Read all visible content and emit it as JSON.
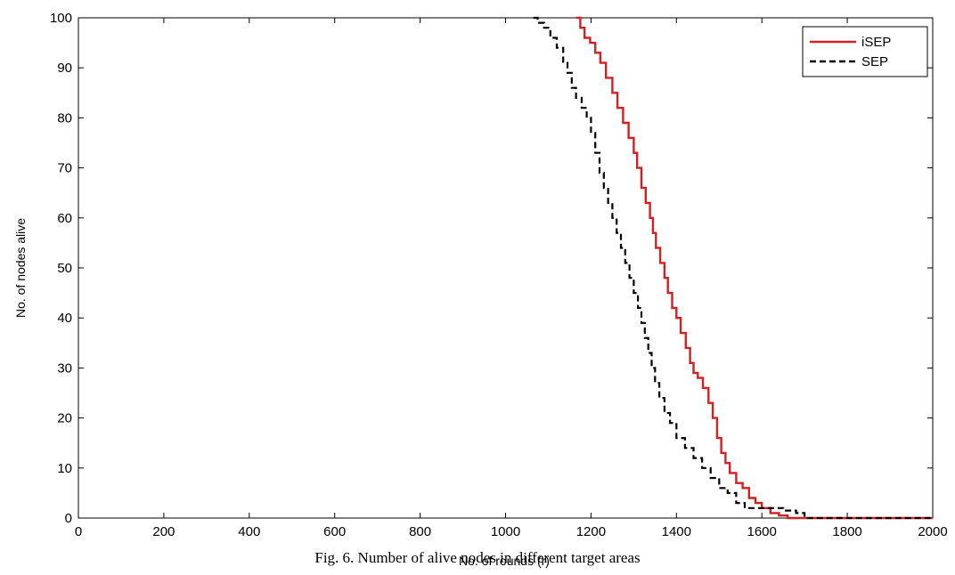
{
  "caption": "Fig. 6. Number of alive nodes in different target areas",
  "chart_data": {
    "type": "line",
    "xlabel": "No. of rounds (r)",
    "ylabel": "No. of nodes alive",
    "xlim": [
      0,
      2000
    ],
    "ylim": [
      0,
      100
    ],
    "x_ticks": [
      0,
      200,
      400,
      600,
      800,
      1000,
      1200,
      1400,
      1600,
      1800,
      2000
    ],
    "y_ticks": [
      0,
      10,
      20,
      30,
      40,
      50,
      60,
      70,
      80,
      90,
      100
    ],
    "grid": false,
    "legend_position": "top-right",
    "series": [
      {
        "name": "iSEP",
        "color": "#d42020",
        "line_style": "solid",
        "x": [
          1165,
          1175,
          1185,
          1198,
          1210,
          1222,
          1235,
          1250,
          1262,
          1275,
          1288,
          1300,
          1308,
          1318,
          1328,
          1338,
          1345,
          1352,
          1362,
          1372,
          1380,
          1390,
          1400,
          1410,
          1422,
          1432,
          1440,
          1450,
          1462,
          1475,
          1485,
          1495,
          1505,
          1515,
          1525,
          1540,
          1555,
          1570,
          1585,
          1600,
          1620,
          1640,
          1660,
          1700,
          2000
        ],
        "y": [
          100,
          98,
          96,
          95,
          93,
          91,
          88,
          85,
          82,
          79,
          76,
          73,
          70,
          66,
          63,
          60,
          57,
          54,
          51,
          48,
          45,
          42,
          40,
          37,
          34,
          31,
          29,
          28,
          26,
          23,
          20,
          16,
          13,
          11,
          9,
          7,
          6,
          4,
          3,
          2,
          1,
          0.5,
          0,
          0,
          0
        ]
      },
      {
        "name": "SEP",
        "color": "#000000",
        "line_style": "dashed",
        "x": [
          1065,
          1075,
          1090,
          1105,
          1120,
          1135,
          1145,
          1155,
          1165,
          1178,
          1190,
          1200,
          1210,
          1220,
          1230,
          1240,
          1250,
          1260,
          1270,
          1280,
          1290,
          1300,
          1310,
          1318,
          1326,
          1334,
          1342,
          1350,
          1360,
          1372,
          1385,
          1400,
          1420,
          1440,
          1460,
          1480,
          1500,
          1520,
          1540,
          1560,
          1600,
          1650,
          1680,
          1700,
          2000
        ],
        "y": [
          100,
          99,
          98,
          96,
          94,
          91,
          89,
          86,
          84,
          82,
          80,
          77,
          73,
          69,
          66,
          63,
          60,
          57,
          54,
          51,
          48,
          45,
          42,
          39,
          36,
          33,
          30,
          27,
          24,
          21,
          19,
          16,
          14,
          12,
          10,
          8,
          6,
          5,
          3,
          2,
          2,
          1.5,
          1,
          0,
          0
        ]
      }
    ]
  }
}
